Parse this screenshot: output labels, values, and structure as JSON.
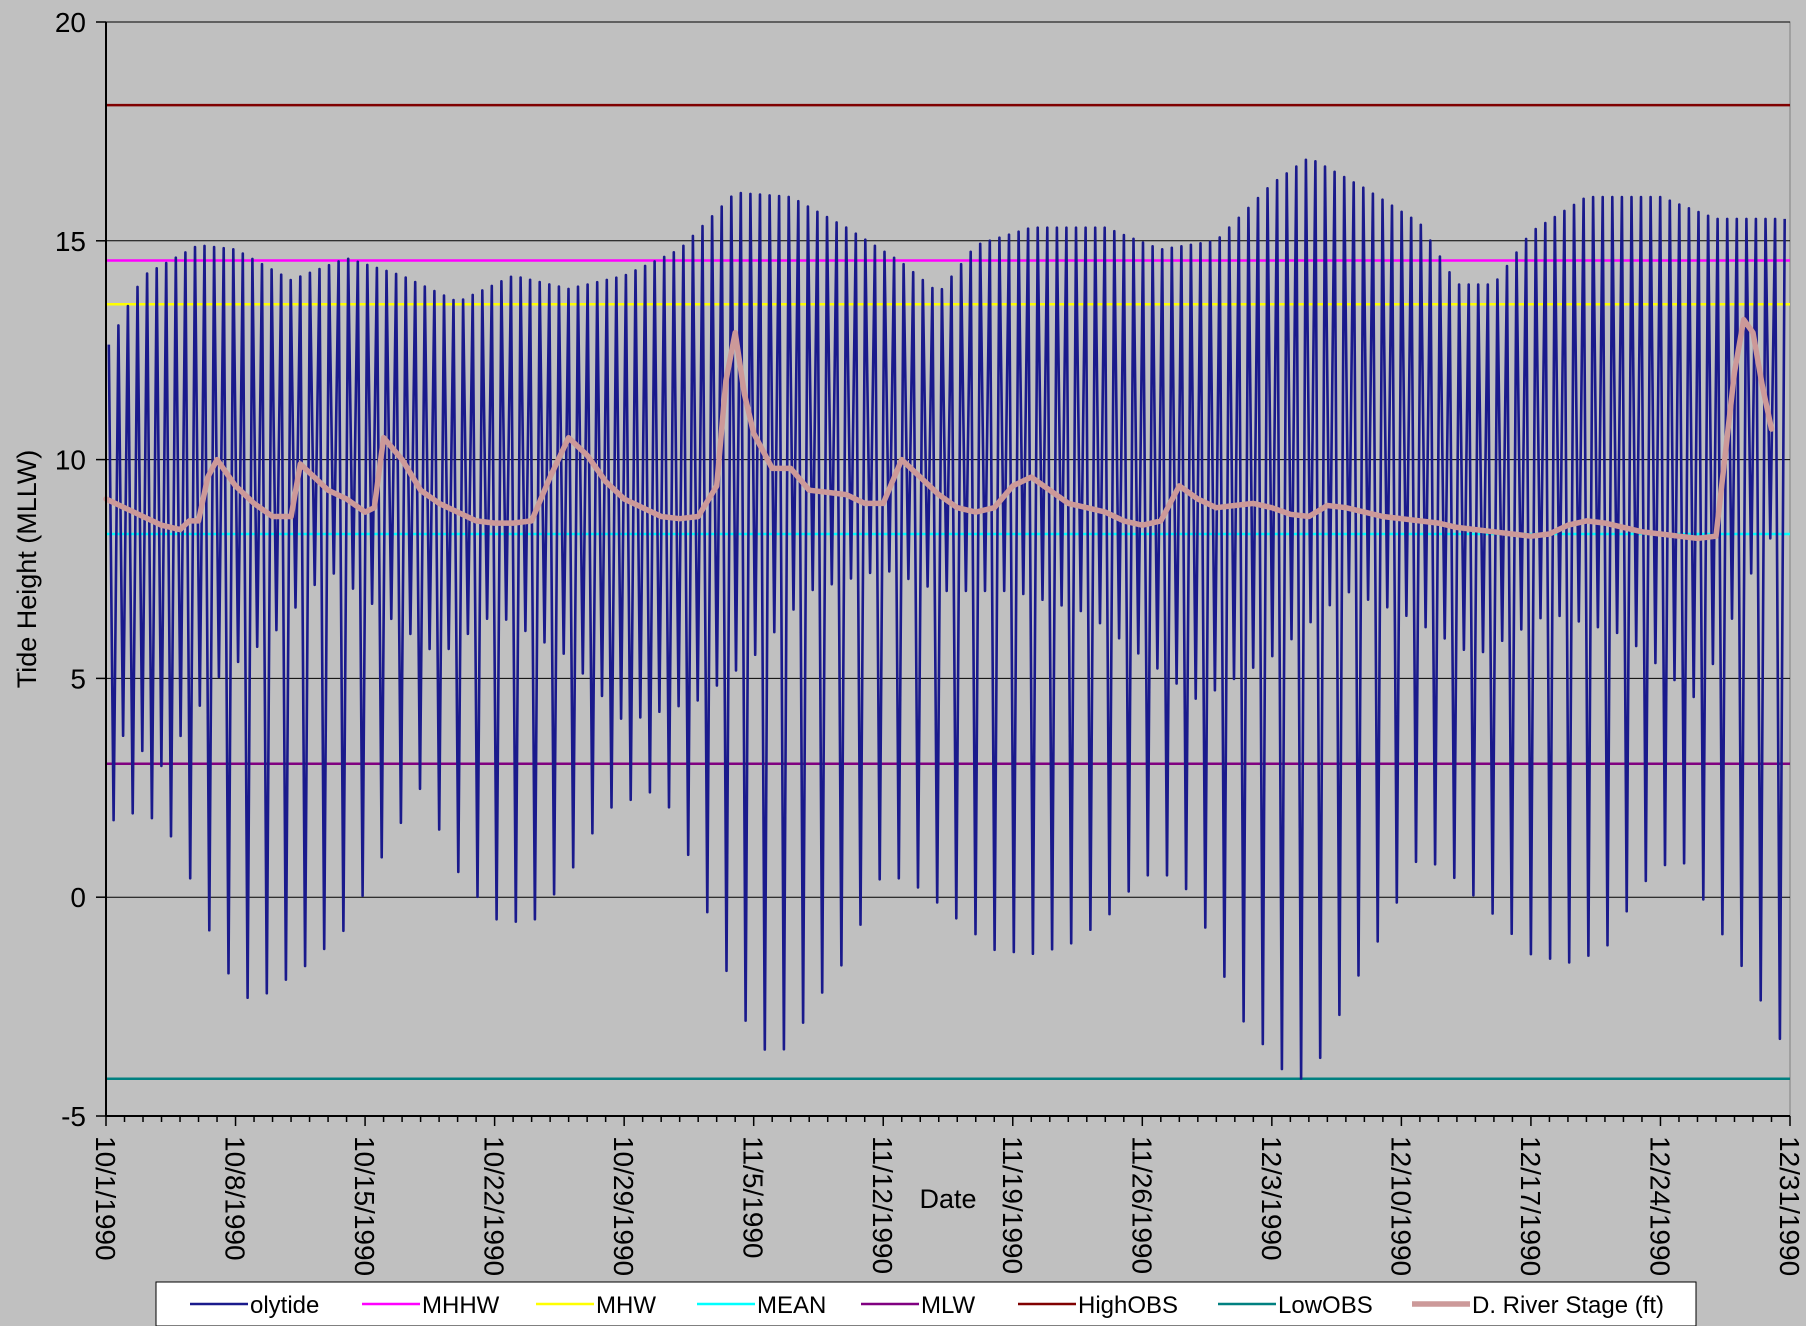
{
  "chart_data": {
    "type": "line",
    "title": "",
    "xlabel": "Date",
    "ylabel": "Tide Height (MLLW)",
    "ylim": [
      -5,
      20
    ],
    "yticks": [
      -5,
      0,
      5,
      10,
      15,
      20
    ],
    "xlim": [
      "10/1/1990",
      "12/31/1990"
    ],
    "xtick_labels": [
      "10/1/1990",
      "10/8/1990",
      "10/15/1990",
      "10/22/1990",
      "10/29/1990",
      "11/5/1990",
      "11/12/1990",
      "11/19/1990",
      "11/26/1990",
      "12/3/1990",
      "12/10/1990",
      "12/17/1990",
      "12/24/1990",
      "12/31/1990"
    ],
    "grid": "horizontal",
    "legend_position": "bottom",
    "series": [
      {
        "name": "olytide",
        "color": "#1a1a8c",
        "kind": "tide",
        "high_envelope": [
          [
            "10/1/1990",
            12.5
          ],
          [
            "10/3/1990",
            14.2
          ],
          [
            "10/6/1990",
            14.9
          ],
          [
            "10/8/1990",
            14.8
          ],
          [
            "10/11/1990",
            14.1
          ],
          [
            "10/14/1990",
            14.6
          ],
          [
            "10/17/1990",
            14.2
          ],
          [
            "10/20/1990",
            13.6
          ],
          [
            "10/23/1990",
            14.2
          ],
          [
            "10/26/1990",
            13.9
          ],
          [
            "10/29/1990",
            14.2
          ],
          [
            "11/1/1990",
            14.8
          ],
          [
            "11/4/1990",
            16.1
          ],
          [
            "11/7/1990",
            16.0
          ],
          [
            "11/10/1990",
            15.3
          ],
          [
            "11/13/1990",
            14.5
          ],
          [
            "11/15/1990",
            13.8
          ],
          [
            "11/17/1990",
            14.9
          ],
          [
            "11/20/1990",
            15.3
          ],
          [
            "11/24/1990",
            15.3
          ],
          [
            "11/27/1990",
            14.8
          ],
          [
            "11/30/1990",
            15.0
          ],
          [
            "12/3/1990",
            16.3
          ],
          [
            "12/5/1990",
            16.9
          ],
          [
            "12/8/1990",
            16.2
          ],
          [
            "12/11/1990",
            15.4
          ],
          [
            "12/13/1990",
            14.0
          ],
          [
            "12/15/1990",
            14.0
          ],
          [
            "12/17/1990",
            15.2
          ],
          [
            "12/20/1990",
            16.0
          ],
          [
            "12/24/1990",
            16.0
          ],
          [
            "12/27/1990",
            15.5
          ],
          [
            "12/31/1990",
            15.5
          ]
        ],
        "higher_low_envelope": [
          [
            "10/1/1990",
            4.0
          ],
          [
            "10/4/1990",
            3.0
          ],
          [
            "10/7/1990",
            5.0
          ],
          [
            "10/10/1990",
            6.0
          ],
          [
            "10/13/1990",
            7.5
          ],
          [
            "10/16/1990",
            6.5
          ],
          [
            "10/19/1990",
            5.5
          ],
          [
            "10/22/1990",
            6.5
          ],
          [
            "10/26/1990",
            5.5
          ],
          [
            "10/29/1990",
            4.0
          ],
          [
            "11/2/1990",
            4.5
          ],
          [
            "11/5/1990",
            5.5
          ],
          [
            "11/8/1990",
            7.0
          ],
          [
            "11/12/1990",
            7.5
          ],
          [
            "11/15/1990",
            7.0
          ],
          [
            "11/19/1990",
            7.0
          ],
          [
            "11/23/1990",
            6.5
          ],
          [
            "11/26/1990",
            5.5
          ],
          [
            "11/29/1990",
            4.5
          ],
          [
            "12/3/1990",
            5.5
          ],
          [
            "12/7/1990",
            7.0
          ],
          [
            "12/10/1990",
            6.5
          ],
          [
            "12/14/1990",
            5.5
          ],
          [
            "12/18/1990",
            6.5
          ],
          [
            "12/22/1990",
            6.0
          ],
          [
            "12/26/1990",
            4.5
          ],
          [
            "12/29/1990",
            7.5
          ],
          [
            "12/31/1990",
            9.0
          ]
        ],
        "low_envelope": [
          [
            "10/1/1990",
            1.7
          ],
          [
            "10/3/1990",
            2.0
          ],
          [
            "10/5/1990",
            1.2
          ],
          [
            "10/6/1990",
            -0.2
          ],
          [
            "10/8/1990",
            -2.1
          ],
          [
            "10/9/1990",
            -2.4
          ],
          [
            "10/10/1990",
            -2.1
          ],
          [
            "10/12/1990",
            -1.5
          ],
          [
            "10/14/1990",
            -0.7
          ],
          [
            "10/16/1990",
            1.0
          ],
          [
            "10/18/1990",
            2.5
          ],
          [
            "10/20/1990",
            0.6
          ],
          [
            "10/22/1990",
            -0.5
          ],
          [
            "10/24/1990",
            -0.6
          ],
          [
            "10/26/1990",
            0.5
          ],
          [
            "10/28/1990",
            2.0
          ],
          [
            "10/31/1990",
            2.5
          ],
          [
            "11/2/1990",
            0.4
          ],
          [
            "11/3/1990",
            -1.1
          ],
          [
            "11/5/1990",
            -3.3
          ],
          [
            "11/6/1990",
            -3.6
          ],
          [
            "11/7/1990",
            -3.4
          ],
          [
            "11/8/1990",
            -2.6
          ],
          [
            "11/10/1990",
            -1.4
          ],
          [
            "11/12/1990",
            0.6
          ],
          [
            "11/14/1990",
            0.2
          ],
          [
            "11/16/1990",
            -0.5
          ],
          [
            "11/18/1990",
            -1.2
          ],
          [
            "11/20/1990",
            -1.3
          ],
          [
            "11/22/1990",
            -1.1
          ],
          [
            "11/24/1990",
            -0.5
          ],
          [
            "11/26/1990",
            0.5
          ],
          [
            "11/28/1990",
            0.5
          ],
          [
            "11/30/1990",
            -1.2
          ],
          [
            "12/1/1990",
            -2.6
          ],
          [
            "12/3/1990",
            -3.6
          ],
          [
            "12/4/1990",
            -4.2
          ],
          [
            "12/5/1990",
            -4.1
          ],
          [
            "12/6/1990",
            -3.4
          ],
          [
            "12/7/1990",
            -2.3
          ],
          [
            "12/9/1990",
            -0.8
          ],
          [
            "12/11/1990",
            1.0
          ],
          [
            "12/13/1990",
            0.4
          ],
          [
            "12/15/1990",
            -0.4
          ],
          [
            "12/17/1990",
            -1.3
          ],
          [
            "12/19/1990",
            -1.5
          ],
          [
            "12/21/1990",
            -1.2
          ],
          [
            "12/23/1990",
            0.3
          ],
          [
            "12/25/1990",
            1.0
          ],
          [
            "12/27/1990",
            -0.6
          ],
          [
            "12/29/1990",
            -2.0
          ],
          [
            "12/31/1990",
            -3.7
          ]
        ]
      },
      {
        "name": "MHHW",
        "color": "#ff00ff",
        "value": 14.55
      },
      {
        "name": "MHW",
        "color": "#ffff00",
        "value": 13.55
      },
      {
        "name": "MEAN",
        "color": "#00ffff",
        "value": 8.3
      },
      {
        "name": "MLW",
        "color": "#800080",
        "value": 3.05
      },
      {
        "name": "HighOBS",
        "color": "#800000",
        "value": 18.1
      },
      {
        "name": "LowOBS",
        "color": "#008080",
        "value": -4.15
      },
      {
        "name": "D. River Stage (ft)",
        "color": "#cc9999",
        "points": [
          [
            "10/1/1990",
            9.1
          ],
          [
            "10/2/1990",
            8.9
          ],
          [
            "10/3/1990",
            8.7
          ],
          [
            "10/4/1990",
            8.5
          ],
          [
            "10/5/1990",
            8.4
          ],
          [
            "10/5/1990 12:00",
            8.6
          ],
          [
            "10/6/1990",
            8.6
          ],
          [
            "10/6/1990 12:00",
            9.6
          ],
          [
            "10/7/1990",
            10.0
          ],
          [
            "10/8/1990",
            9.4
          ],
          [
            "10/9/1990",
            9.0
          ],
          [
            "10/10/1990",
            8.7
          ],
          [
            "10/11/1990",
            8.7
          ],
          [
            "10/11/1990 12:00",
            9.9
          ],
          [
            "10/12/1990",
            9.7
          ],
          [
            "10/13/1990",
            9.3
          ],
          [
            "10/14/1990",
            9.1
          ],
          [
            "10/15/1990",
            8.8
          ],
          [
            "10/15/1990 12:00",
            8.9
          ],
          [
            "10/16/1990",
            10.5
          ],
          [
            "10/17/1990",
            10.0
          ],
          [
            "10/18/1990",
            9.3
          ],
          [
            "10/19/1990",
            9.0
          ],
          [
            "10/20/1990",
            8.8
          ],
          [
            "10/21/1990",
            8.6
          ],
          [
            "10/22/1990",
            8.55
          ],
          [
            "10/23/1990",
            8.55
          ],
          [
            "10/24/1990",
            8.6
          ],
          [
            "10/25/1990",
            9.6
          ],
          [
            "10/26/1990",
            10.5
          ],
          [
            "10/27/1990",
            10.1
          ],
          [
            "10/28/1990",
            9.5
          ],
          [
            "10/29/1990",
            9.1
          ],
          [
            "10/30/1990",
            8.9
          ],
          [
            "10/31/1990",
            8.7
          ],
          [
            "11/1/1990",
            8.65
          ],
          [
            "11/2/1990",
            8.7
          ],
          [
            "11/3/1990",
            9.4
          ],
          [
            "11/3/1990 12:00",
            11.8
          ],
          [
            "11/4/1990",
            12.9
          ],
          [
            "11/4/1990 12:00",
            11.5
          ],
          [
            "11/5/1990",
            10.6
          ],
          [
            "11/6/1990",
            9.8
          ],
          [
            "11/7/1990",
            9.8
          ],
          [
            "11/8/1990",
            9.3
          ],
          [
            "11/9/1990",
            9.25
          ],
          [
            "11/10/1990",
            9.2
          ],
          [
            "11/11/1990",
            9.0
          ],
          [
            "11/12/1990",
            9.0
          ],
          [
            "11/13/1990",
            10.0
          ],
          [
            "11/14/1990",
            9.6
          ],
          [
            "11/15/1990",
            9.2
          ],
          [
            "11/16/1990",
            8.9
          ],
          [
            "11/17/1990",
            8.8
          ],
          [
            "11/18/1990",
            8.9
          ],
          [
            "11/19/1990",
            9.4
          ],
          [
            "11/20/1990",
            9.6
          ],
          [
            "11/21/1990",
            9.3
          ],
          [
            "11/22/1990",
            9.0
          ],
          [
            "11/23/1990",
            8.9
          ],
          [
            "11/24/1990",
            8.8
          ],
          [
            "11/25/1990",
            8.6
          ],
          [
            "11/26/1990",
            8.5
          ],
          [
            "11/27/1990",
            8.6
          ],
          [
            "11/28/1990",
            9.4
          ],
          [
            "11/29/1990",
            9.1
          ],
          [
            "11/30/1990",
            8.9
          ],
          [
            "12/1/1990",
            8.95
          ],
          [
            "12/2/1990",
            9.0
          ],
          [
            "12/3/1990",
            8.9
          ],
          [
            "12/4/1990",
            8.75
          ],
          [
            "12/5/1990",
            8.7
          ],
          [
            "12/6/1990",
            8.95
          ],
          [
            "12/7/1990",
            8.9
          ],
          [
            "12/8/1990",
            8.8
          ],
          [
            "12/9/1990",
            8.7
          ],
          [
            "12/10/1990",
            8.65
          ],
          [
            "12/11/1990",
            8.6
          ],
          [
            "12/12/1990",
            8.55
          ],
          [
            "12/13/1990",
            8.45
          ],
          [
            "12/14/1990",
            8.4
          ],
          [
            "12/15/1990",
            8.35
          ],
          [
            "12/16/1990",
            8.3
          ],
          [
            "12/17/1990",
            8.25
          ],
          [
            "12/18/1990",
            8.3
          ],
          [
            "12/19/1990",
            8.5
          ],
          [
            "12/20/1990",
            8.6
          ],
          [
            "12/21/1990",
            8.55
          ],
          [
            "12/22/1990",
            8.45
          ],
          [
            "12/23/1990",
            8.35
          ],
          [
            "12/24/1990",
            8.3
          ],
          [
            "12/25/1990",
            8.25
          ],
          [
            "12/26/1990",
            8.2
          ],
          [
            "12/27/1990",
            8.25
          ],
          [
            "12/28/1990",
            12.0
          ],
          [
            "12/28/1990 12:00",
            13.2
          ],
          [
            "12/29/1990",
            12.9
          ],
          [
            "12/29/1990 12:00",
            11.7
          ],
          [
            "12/30/1990",
            10.7
          ]
        ]
      }
    ],
    "legend": [
      "olytide",
      "MHHW",
      "MHW",
      "MEAN",
      "MLW",
      "HighOBS",
      "LowOBS",
      "D. River Stage (ft)"
    ]
  }
}
